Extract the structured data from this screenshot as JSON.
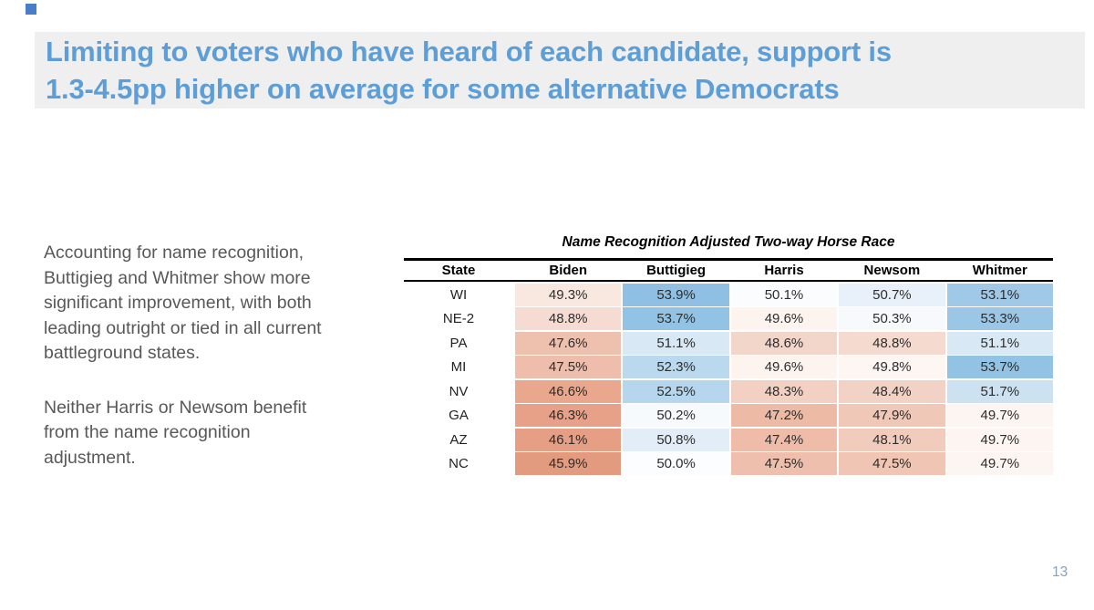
{
  "decor": {
    "corner_square_color": "#4a7cc7"
  },
  "title": {
    "lines": [
      "Limiting to voters who have heard of each candidate, support is",
      "1.3-4.5pp higher on average for some alternative Democrats"
    ],
    "color": "#5d9ed7",
    "background": "#efeff0"
  },
  "sidebar": {
    "paragraph1": "Accounting for name recognition, Buttigieg and Whitmer show more significant improvement, with both leading outright or tied in all current battleground states.",
    "paragraph2": "Neither Harris or Newsom benefit from the name recognition adjustment."
  },
  "table": {
    "title": "Name Recognition Adjusted Two-way Horse Race",
    "columns": [
      "State",
      "Biden",
      "Buttigieg",
      "Harris",
      "Newsom",
      "Whitmer"
    ],
    "rows": [
      {
        "state": "WI",
        "cells": [
          {
            "value": "49.3%",
            "bg": "#f8e8e0"
          },
          {
            "value": "53.9%",
            "bg": "#8fc0e3"
          },
          {
            "value": "50.1%",
            "bg": "#fafcfe"
          },
          {
            "value": "50.7%",
            "bg": "#e8f1f9"
          },
          {
            "value": "53.1%",
            "bg": "#a0c9e7"
          }
        ]
      },
      {
        "state": "NE-2",
        "cells": [
          {
            "value": "48.8%",
            "bg": "#f5dbd1"
          },
          {
            "value": "53.7%",
            "bg": "#93c3e4"
          },
          {
            "value": "49.6%",
            "bg": "#fdf4f0"
          },
          {
            "value": "50.3%",
            "bg": "#f7fafc"
          },
          {
            "value": "53.3%",
            "bg": "#9bc6e5"
          }
        ]
      },
      {
        "state": "PA",
        "cells": [
          {
            "value": "47.6%",
            "bg": "#eec0ae"
          },
          {
            "value": "51.1%",
            "bg": "#d8e8f4"
          },
          {
            "value": "48.6%",
            "bg": "#f3d6ca"
          },
          {
            "value": "48.8%",
            "bg": "#f5dacf"
          },
          {
            "value": "51.1%",
            "bg": "#d8e8f4"
          }
        ]
      },
      {
        "state": "MI",
        "cells": [
          {
            "value": "47.5%",
            "bg": "#eebdab"
          },
          {
            "value": "52.3%",
            "bg": "#bad8ee"
          },
          {
            "value": "49.6%",
            "bg": "#fdf4f0"
          },
          {
            "value": "49.8%",
            "bg": "#fdf6f3"
          },
          {
            "value": "53.7%",
            "bg": "#92c2e4"
          }
        ]
      },
      {
        "state": "NV",
        "cells": [
          {
            "value": "46.6%",
            "bg": "#e9a78e"
          },
          {
            "value": "52.5%",
            "bg": "#b5d6ed"
          },
          {
            "value": "48.3%",
            "bg": "#f2d1c3"
          },
          {
            "value": "48.4%",
            "bg": "#f2d2c5"
          },
          {
            "value": "51.7%",
            "bg": "#cde2f1"
          }
        ]
      },
      {
        "state": "GA",
        "cells": [
          {
            "value": "46.3%",
            "bg": "#e7a188"
          },
          {
            "value": "50.2%",
            "bg": "#f6fafc"
          },
          {
            "value": "47.2%",
            "bg": "#edbaa5"
          },
          {
            "value": "47.9%",
            "bg": "#f0c8b7"
          },
          {
            "value": "49.7%",
            "bg": "#fdf5f1"
          }
        ]
      },
      {
        "state": "AZ",
        "cells": [
          {
            "value": "46.1%",
            "bg": "#e69e84"
          },
          {
            "value": "50.8%",
            "bg": "#e2edf7"
          },
          {
            "value": "47.4%",
            "bg": "#eebca9"
          },
          {
            "value": "48.1%",
            "bg": "#f1ccbd"
          },
          {
            "value": "49.7%",
            "bg": "#fdf5f1"
          }
        ]
      },
      {
        "state": "NC",
        "cells": [
          {
            "value": "45.9%",
            "bg": "#e39b80"
          },
          {
            "value": "50.0%",
            "bg": "#fcfdfe"
          },
          {
            "value": "47.5%",
            "bg": "#eebfac"
          },
          {
            "value": "47.5%",
            "bg": "#f0c5b3"
          },
          {
            "value": "49.7%",
            "bg": "#fdf5f1"
          }
        ]
      }
    ]
  },
  "chart_data": {
    "type": "table",
    "title": "Name Recognition Adjusted Two-way Horse Race",
    "columns": [
      "State",
      "Biden",
      "Buttigieg",
      "Harris",
      "Newsom",
      "Whitmer"
    ],
    "states": [
      "WI",
      "NE-2",
      "PA",
      "MI",
      "NV",
      "GA",
      "AZ",
      "NC"
    ],
    "values_pct": [
      [
        49.3,
        53.9,
        50.1,
        50.7,
        53.1
      ],
      [
        48.8,
        53.7,
        49.6,
        50.3,
        53.3
      ],
      [
        47.6,
        51.1,
        48.6,
        48.8,
        51.1
      ],
      [
        47.5,
        52.3,
        49.6,
        49.8,
        53.7
      ],
      [
        46.6,
        52.5,
        48.3,
        48.4,
        51.7
      ],
      [
        46.3,
        50.2,
        47.2,
        47.9,
        49.7
      ],
      [
        46.1,
        50.8,
        47.4,
        48.1,
        49.7
      ],
      [
        45.9,
        50.0,
        47.5,
        47.5,
        49.7
      ]
    ],
    "color_scale": "diverging: red below 50%, white at 50%, blue above 50%"
  },
  "footer": {
    "page_number": "13",
    "color": "#84a3bd"
  }
}
